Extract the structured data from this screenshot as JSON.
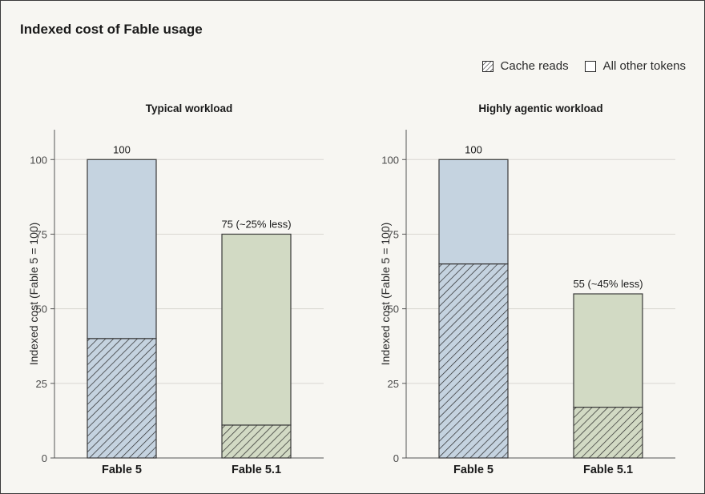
{
  "page": {
    "title": "Indexed cost of Fable usage"
  },
  "legend": {
    "cache_reads": "Cache reads",
    "all_other": "All other tokens"
  },
  "colors": {
    "fable5": "#c5d3e0",
    "fable51": "#d2dac4",
    "border": "#3a3a3a",
    "grid": "#d9d7d1",
    "background": "#f7f6f2"
  },
  "chart_data": [
    {
      "type": "bar",
      "stacked": true,
      "title": "Typical workload",
      "ylabel": "Indexed cost (Fable 5 = 100)",
      "ylim": [
        0,
        110
      ],
      "yticks": [
        0,
        25,
        50,
        75,
        100
      ],
      "grid": true,
      "categories": [
        "Fable 5",
        "Fable 5.1"
      ],
      "series": [
        {
          "name": "Cache reads",
          "values": [
            40,
            11
          ]
        },
        {
          "name": "All other tokens",
          "values": [
            60,
            64
          ]
        }
      ],
      "totals": [
        100,
        75
      ],
      "data_labels": [
        "100",
        "75 (~25% less)"
      ]
    },
    {
      "type": "bar",
      "stacked": true,
      "title": "Highly agentic workload",
      "ylabel": "Indexed cost (Fable 5 = 100)",
      "ylim": [
        0,
        110
      ],
      "yticks": [
        0,
        25,
        50,
        75,
        100
      ],
      "grid": true,
      "categories": [
        "Fable 5",
        "Fable 5.1"
      ],
      "series": [
        {
          "name": "Cache reads",
          "values": [
            65,
            17
          ]
        },
        {
          "name": "All other tokens",
          "values": [
            35,
            38
          ]
        }
      ],
      "totals": [
        100,
        55
      ],
      "data_labels": [
        "100",
        "55 (~45% less)"
      ]
    }
  ]
}
